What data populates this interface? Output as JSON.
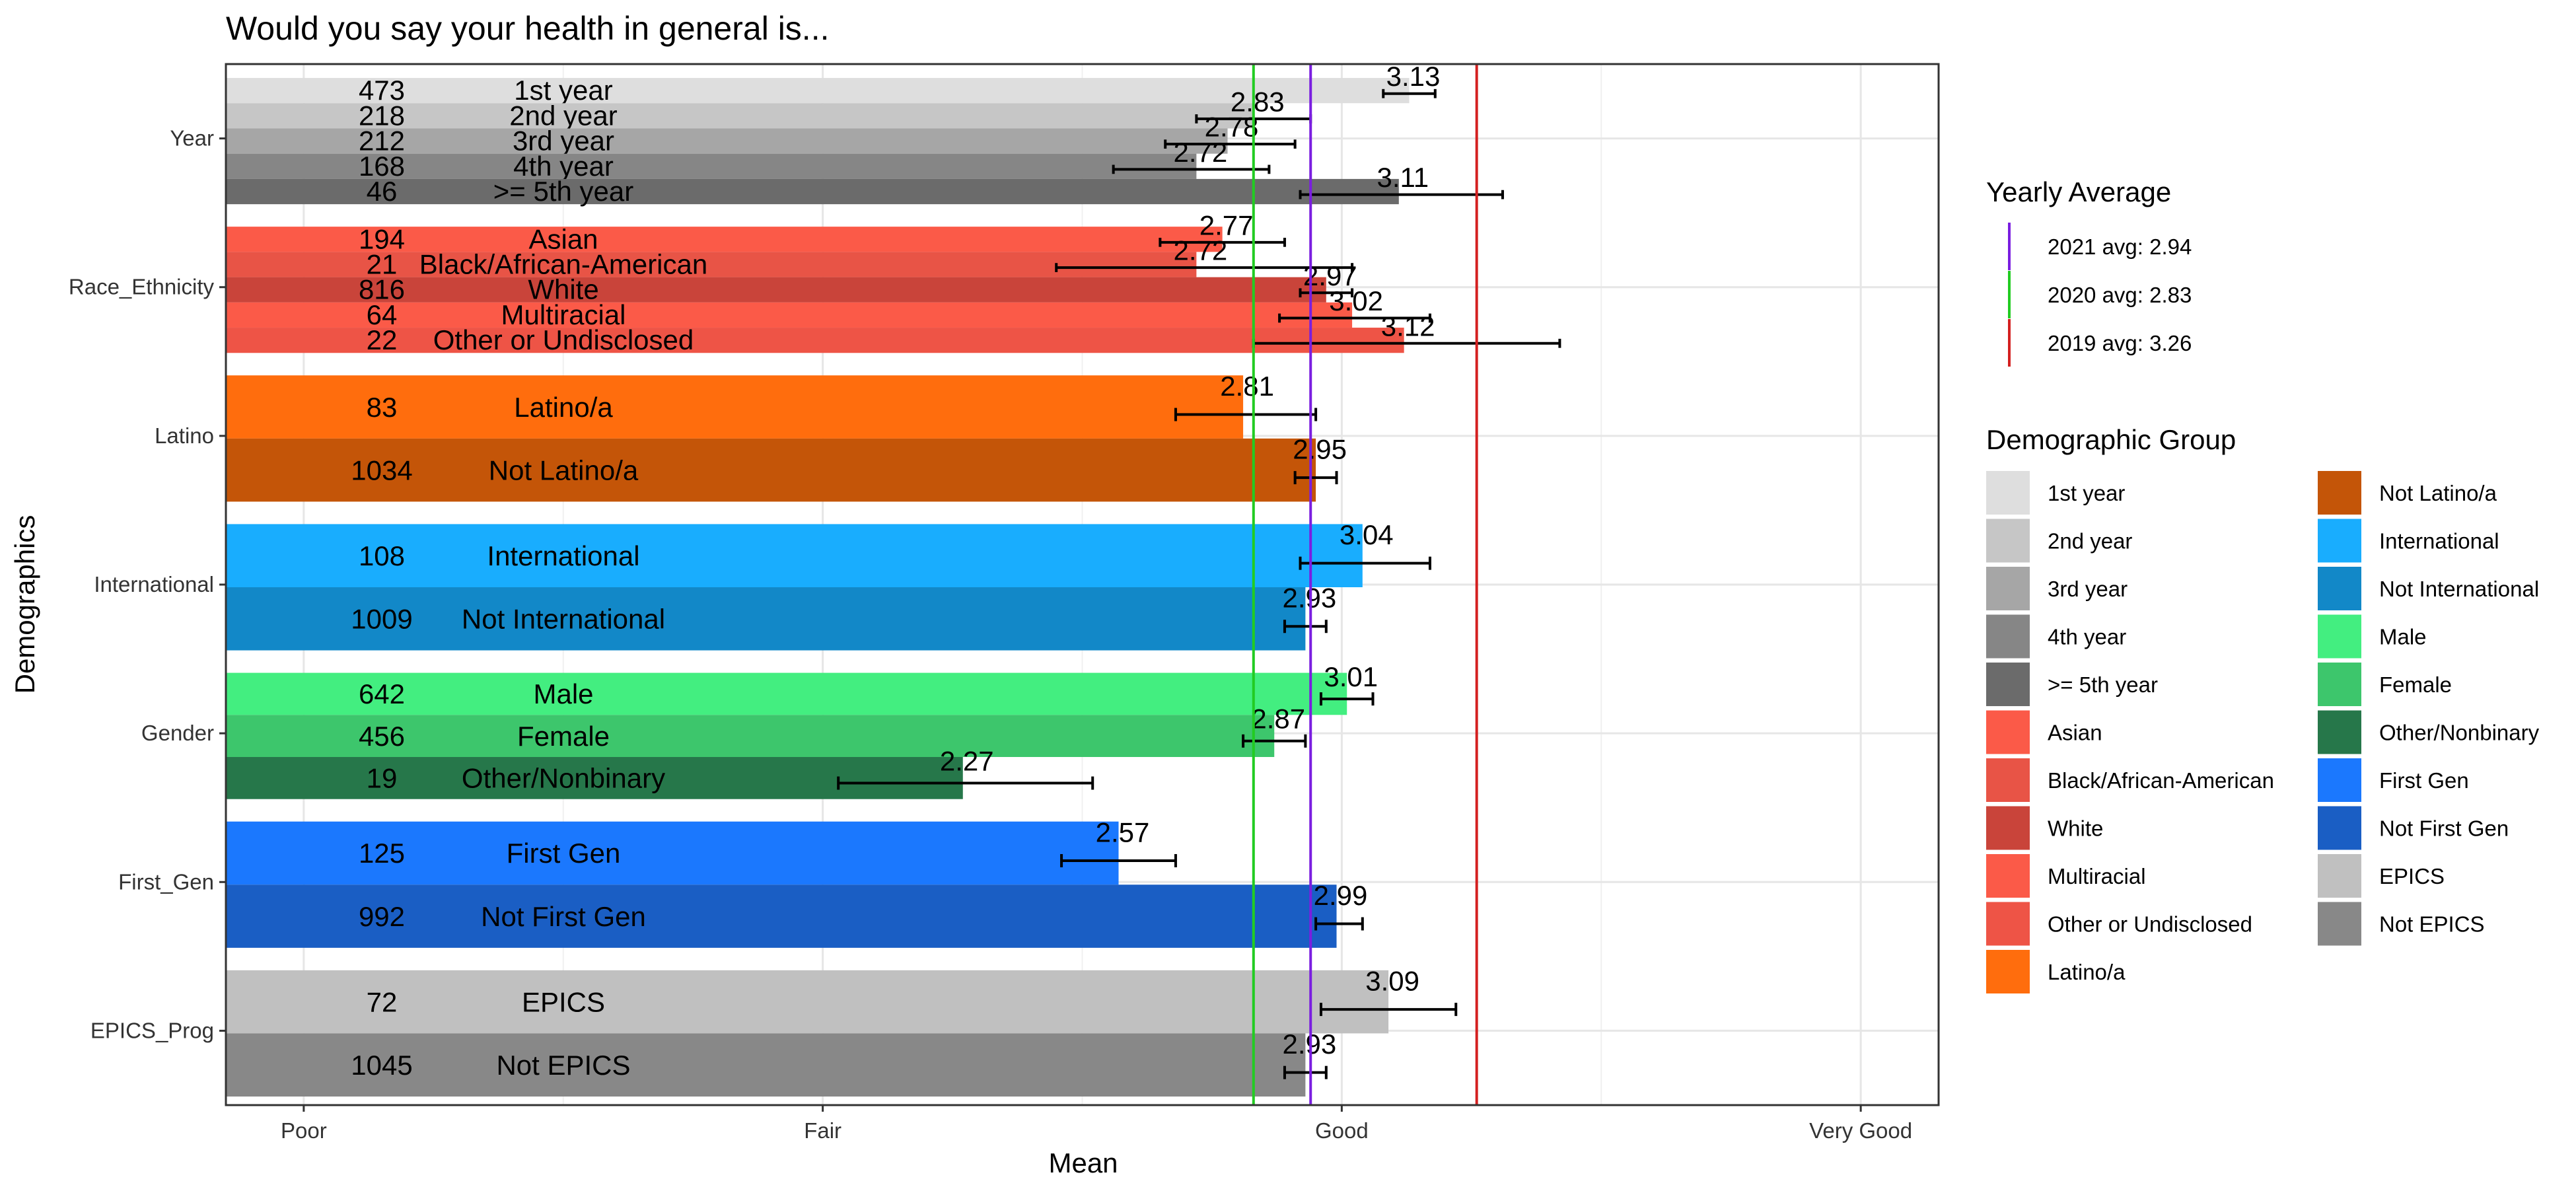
{
  "chart_data": {
    "type": "bar",
    "orientation": "horizontal",
    "title": "Would you say your health in general is...",
    "xlabel": "Mean",
    "ylabel": "Demographics",
    "xlim": [
      0.85,
      4.15
    ],
    "x_ticks": [
      {
        "value": 1,
        "label": "Poor"
      },
      {
        "value": 2,
        "label": "Fair"
      },
      {
        "value": 3,
        "label": "Good"
      },
      {
        "value": 4,
        "label": "Very Good"
      }
    ],
    "grid": true,
    "legend_position": "right",
    "groups": [
      {
        "name": "Year",
        "bars": [
          {
            "label": "1st year",
            "n": "473",
            "mean": 3.13,
            "err": [
              3.08,
              3.18
            ],
            "color": "#dedede"
          },
          {
            "label": "2nd year",
            "n": "218",
            "mean": 2.83,
            "err": [
              2.72,
              2.94
            ],
            "color": "#c6c6c6"
          },
          {
            "label": "3rd year",
            "n": "212",
            "mean": 2.78,
            "err": [
              2.66,
              2.91
            ],
            "color": "#a6a6a6"
          },
          {
            "label": "4th year",
            "n": "168",
            "mean": 2.72,
            "err": [
              2.56,
              2.86
            ],
            "color": "#868686"
          },
          {
            "label": ">= 5th year",
            "n": "46",
            "mean": 3.11,
            "err": [
              2.92,
              3.31
            ],
            "color": "#6b6b6b"
          }
        ]
      },
      {
        "name": "Race_Ethnicity",
        "bars": [
          {
            "label": "Asian",
            "n": "194",
            "mean": 2.77,
            "err": [
              2.65,
              2.89
            ],
            "color": "#fb5a48"
          },
          {
            "label": "Black/African-American",
            "n": "21",
            "mean": 2.72,
            "err": [
              2.45,
              3.02
            ],
            "color": "#e85446"
          },
          {
            "label": "White",
            "n": "816",
            "mean": 2.97,
            "err": [
              2.92,
              3.02
            ],
            "color": "#c9443a"
          },
          {
            "label": "Multiracial",
            "n": "64",
            "mean": 3.02,
            "err": [
              2.88,
              3.17
            ],
            "color": "#fb5a48"
          },
          {
            "label": "Other or Undisclosed",
            "n": "22",
            "mean": 3.12,
            "err": [
              2.83,
              3.42
            ],
            "color": "#ee5446"
          }
        ]
      },
      {
        "name": "Latino",
        "bars": [
          {
            "label": "Latino/a",
            "n": "83",
            "mean": 2.81,
            "err": [
              2.68,
              2.95
            ],
            "color": "#ff6d0d"
          },
          {
            "label": "Not Latino/a",
            "n": "1034",
            "mean": 2.95,
            "err": [
              2.91,
              2.99
            ],
            "color": "#c45508"
          }
        ]
      },
      {
        "name": "International",
        "bars": [
          {
            "label": "International",
            "n": "108",
            "mean": 3.04,
            "err": [
              2.92,
              3.17
            ],
            "color": "#19adfe"
          },
          {
            "label": "Not International",
            "n": "1009",
            "mean": 2.93,
            "err": [
              2.89,
              2.97
            ],
            "color": "#1288c8"
          }
        ]
      },
      {
        "name": "Gender",
        "bars": [
          {
            "label": "Male",
            "n": "642",
            "mean": 3.01,
            "err": [
              2.96,
              3.06
            ],
            "color": "#43ee80"
          },
          {
            "label": "Female",
            "n": "456",
            "mean": 2.87,
            "err": [
              2.81,
              2.93
            ],
            "color": "#3dc66c"
          },
          {
            "label": "Other/Nonbinary",
            "n": "19",
            "mean": 2.27,
            "err": [
              2.03,
              2.52
            ],
            "color": "#26774a"
          }
        ]
      },
      {
        "name": "First_Gen",
        "bars": [
          {
            "label": "First Gen",
            "n": "125",
            "mean": 2.57,
            "err": [
              2.46,
              2.68
            ],
            "color": "#1b78fe"
          },
          {
            "label": "Not First Gen",
            "n": "992",
            "mean": 2.99,
            "err": [
              2.95,
              3.04
            ],
            "color": "#1a5ec4"
          }
        ]
      },
      {
        "name": "EPICS_Prog",
        "bars": [
          {
            "label": "EPICS",
            "n": "72",
            "mean": 3.09,
            "err": [
              2.96,
              3.22
            ],
            "color": "#c0c0c0"
          },
          {
            "label": "Not EPICS",
            "n": "1045",
            "mean": 2.93,
            "err": [
              2.89,
              2.97
            ],
            "color": "#888888"
          }
        ]
      }
    ],
    "reference_lines": [
      {
        "label": "2021 avg: 2.94",
        "value": 2.94,
        "color": "#7a1ee0"
      },
      {
        "label": "2020 avg: 2.83",
        "value": 2.83,
        "color": "#22cc22"
      },
      {
        "label": "2019 avg: 3.26",
        "value": 3.26,
        "color": "#d42020"
      }
    ],
    "legend_line_title": "Yearly Average",
    "legend_group_title": "Demographic Group",
    "legend_group_items": [
      {
        "label": "1st year",
        "color": "#dedede"
      },
      {
        "label": "2nd year",
        "color": "#c6c6c6"
      },
      {
        "label": "3rd year",
        "color": "#a6a6a6"
      },
      {
        "label": "4th year",
        "color": "#868686"
      },
      {
        "label": ">= 5th year",
        "color": "#6b6b6b"
      },
      {
        "label": "Asian",
        "color": "#fb5a48"
      },
      {
        "label": "Black/African-American",
        "color": "#e85446"
      },
      {
        "label": "White",
        "color": "#c9443a"
      },
      {
        "label": "Multiracial",
        "color": "#fb5a48"
      },
      {
        "label": "Other or Undisclosed",
        "color": "#ee5446"
      },
      {
        "label": "Latino/a",
        "color": "#ff6d0d"
      },
      {
        "label": "Not Latino/a",
        "color": "#c45508"
      },
      {
        "label": "International",
        "color": "#19adfe"
      },
      {
        "label": "Not International",
        "color": "#1288c8"
      },
      {
        "label": "Male",
        "color": "#43ee80"
      },
      {
        "label": "Female",
        "color": "#3dc66c"
      },
      {
        "label": "Other/Nonbinary",
        "color": "#26774a"
      },
      {
        "label": "First Gen",
        "color": "#1b78fe"
      },
      {
        "label": "Not First Gen",
        "color": "#1a5ec4"
      },
      {
        "label": "EPICS",
        "color": "#c0c0c0"
      },
      {
        "label": "Not EPICS",
        "color": "#888888"
      }
    ]
  }
}
